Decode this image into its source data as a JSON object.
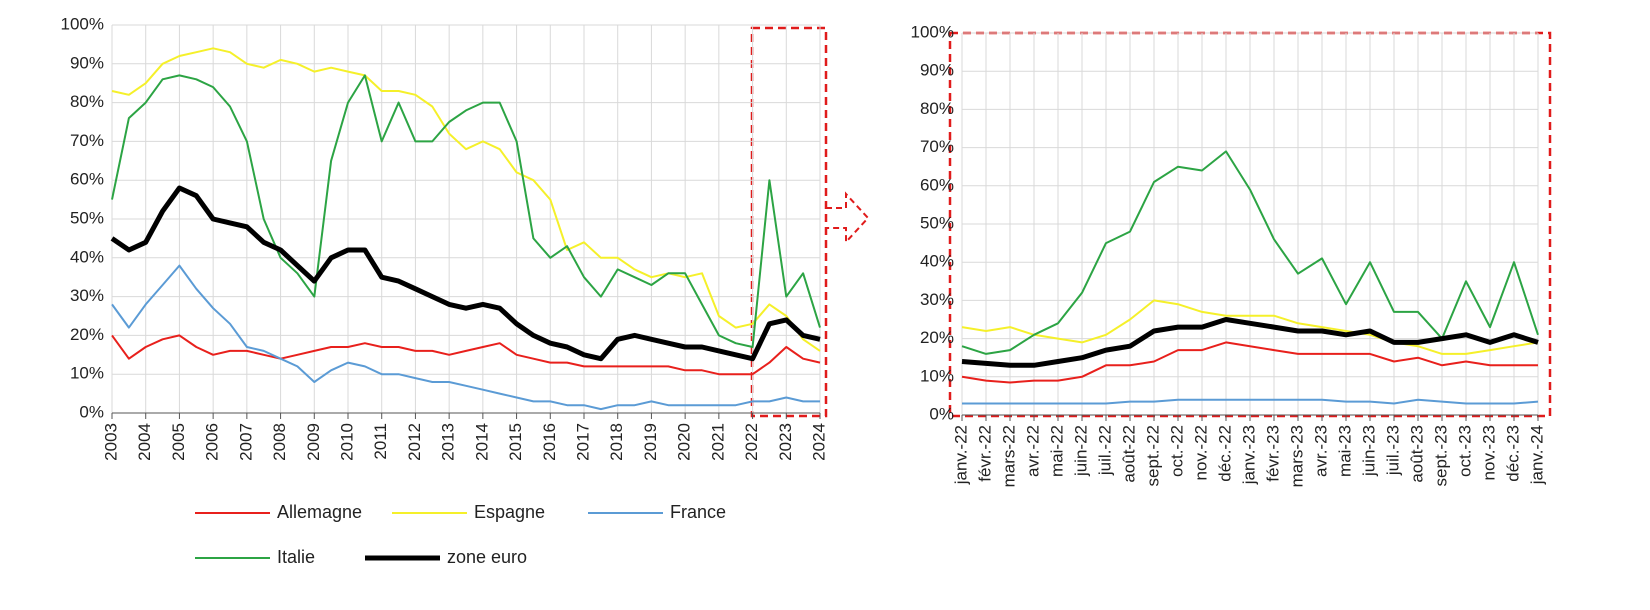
{
  "chart_data": [
    {
      "type": "line",
      "x": [
        2003,
        2003.5,
        2004,
        2004.5,
        2005,
        2005.5,
        2006,
        2006.5,
        2007,
        2007.5,
        2008,
        2008.5,
        2009,
        2009.5,
        2010,
        2010.5,
        2011,
        2011.5,
        2012,
        2012.5,
        2013,
        2013.5,
        2014,
        2014.5,
        2015,
        2015.5,
        2016,
        2016.5,
        2017,
        2017.5,
        2018,
        2018.5,
        2019,
        2019.5,
        2020,
        2020.5,
        2021,
        2021.5,
        2022,
        2022.5,
        2023,
        2023.5,
        2024
      ],
      "xlim": [
        2003,
        2024
      ],
      "xticks": [
        2003,
        2004,
        2005,
        2006,
        2007,
        2008,
        2009,
        2010,
        2011,
        2012,
        2013,
        2014,
        2015,
        2016,
        2017,
        2018,
        2019,
        2020,
        2021,
        2022,
        2023,
        2024
      ],
      "ylim": [
        0,
        100
      ],
      "yticks": [
        {
          "value": 0,
          "label": "0%"
        },
        {
          "value": 10,
          "label": "10%"
        },
        {
          "value": 20,
          "label": "20%"
        },
        {
          "value": 30,
          "label": "30%"
        },
        {
          "value": 40,
          "label": "40%"
        },
        {
          "value": 50,
          "label": "50%"
        },
        {
          "value": 60,
          "label": "60%"
        },
        {
          "value": 70,
          "label": "70%"
        },
        {
          "value": 80,
          "label": "80%"
        },
        {
          "value": 90,
          "label": "90%"
        },
        {
          "value": 100,
          "label": "100%"
        }
      ],
      "grid": true,
      "series": [
        {
          "name": "Allemagne",
          "color": "#e8201c",
          "linewidth": 2,
          "values": [
            20,
            14,
            17,
            19,
            20,
            17,
            15,
            16,
            16,
            15,
            14,
            15,
            16,
            17,
            17,
            18,
            17,
            17,
            16,
            16,
            15,
            16,
            17,
            18,
            15,
            14,
            13,
            13,
            12,
            12,
            12,
            12,
            12,
            12,
            11,
            11,
            10,
            10,
            10,
            13,
            17,
            14,
            13
          ]
        },
        {
          "name": "Espagne",
          "color": "#f5f02a",
          "linewidth": 2,
          "values": [
            83,
            82,
            85,
            90,
            92,
            93,
            94,
            93,
            90,
            89,
            91,
            90,
            88,
            89,
            88,
            87,
            83,
            83,
            82,
            79,
            72,
            68,
            70,
            68,
            62,
            60,
            55,
            42,
            44,
            40,
            40,
            37,
            35,
            36,
            35,
            36,
            25,
            22,
            23,
            28,
            25,
            19,
            16
          ]
        },
        {
          "name": "France",
          "color": "#5b9bd5",
          "linewidth": 2,
          "values": [
            28,
            22,
            28,
            33,
            38,
            32,
            27,
            23,
            17,
            16,
            14,
            12,
            8,
            11,
            13,
            12,
            10,
            10,
            9,
            8,
            8,
            7,
            6,
            5,
            4,
            3,
            3,
            2,
            2,
            1,
            2,
            2,
            3,
            2,
            2,
            2,
            2,
            2,
            3,
            3,
            4,
            3,
            3
          ]
        },
        {
          "name": "Italie",
          "color": "#2ca444",
          "linewidth": 2,
          "values": [
            55,
            76,
            80,
            86,
            87,
            86,
            84,
            79,
            70,
            50,
            40,
            36,
            30,
            65,
            80,
            87,
            70,
            80,
            70,
            70,
            75,
            78,
            80,
            80,
            70,
            45,
            40,
            43,
            35,
            30,
            37,
            35,
            33,
            36,
            36,
            28,
            20,
            18,
            17,
            60,
            30,
            36,
            22
          ]
        },
        {
          "name": "zone euro",
          "color": "#000000",
          "linewidth": 5,
          "values": [
            45,
            42,
            44,
            52,
            58,
            56,
            50,
            49,
            48,
            44,
            42,
            38,
            34,
            40,
            42,
            42,
            35,
            34,
            32,
            30,
            28,
            27,
            28,
            27,
            23,
            20,
            18,
            17,
            15,
            14,
            19,
            20,
            19,
            18,
            17,
            17,
            16,
            15,
            14,
            23,
            24,
            20,
            19
          ]
        }
      ]
    },
    {
      "type": "line",
      "categories": [
        "janv.-22",
        "févr.-22",
        "mars-22",
        "avr.-22",
        "mai-22",
        "juin-22",
        "juil.-22",
        "août-22",
        "sept.-22",
        "oct.-22",
        "nov.-22",
        "déc.-22",
        "janv.-23",
        "févr.-23",
        "mars-23",
        "avr.-23",
        "mai-23",
        "juin-23",
        "juil.-23",
        "août-23",
        "sept.-23",
        "oct.-23",
        "nov.-23",
        "déc.-23",
        "janv.-24"
      ],
      "ylim": [
        0,
        100
      ],
      "yticks": [
        {
          "value": 0,
          "label": "0%"
        },
        {
          "value": 10,
          "label": "10%"
        },
        {
          "value": 20,
          "label": "20%"
        },
        {
          "value": 30,
          "label": "30%"
        },
        {
          "value": 40,
          "label": "40%"
        },
        {
          "value": 50,
          "label": "50%"
        },
        {
          "value": 60,
          "label": "60%"
        },
        {
          "value": 70,
          "label": "70%"
        },
        {
          "value": 80,
          "label": "80%"
        },
        {
          "value": 90,
          "label": "90%"
        },
        {
          "value": 100,
          "label": "100%"
        }
      ],
      "grid": true,
      "series": [
        {
          "color": "#e8201c",
          "linewidth": 2,
          "values": [
            10,
            9,
            8.5,
            9,
            9,
            10,
            13,
            13,
            14,
            17,
            17,
            19,
            18,
            17,
            16,
            16,
            16,
            16,
            14,
            15,
            13,
            14,
            13,
            13,
            13
          ]
        },
        {
          "color": "#f5f02a",
          "linewidth": 2,
          "values": [
            23,
            22,
            23,
            21,
            20,
            19,
            21,
            25,
            30,
            29,
            27,
            26,
            26,
            26,
            24,
            23,
            22,
            21,
            19,
            18,
            16,
            16,
            17,
            18,
            19
          ]
        },
        {
          "color": "#5b9bd5",
          "linewidth": 2,
          "values": [
            3,
            3,
            3,
            3,
            3,
            3,
            3,
            3.5,
            3.5,
            4,
            4,
            4,
            4,
            4,
            4,
            4,
            3.5,
            3.5,
            3,
            4,
            3.5,
            3,
            3,
            3,
            3.5
          ]
        },
        {
          "color": "#2ca444",
          "linewidth": 2,
          "values": [
            18,
            16,
            17,
            21,
            24,
            32,
            45,
            48,
            61,
            65,
            64,
            69,
            59,
            46,
            37,
            41,
            29,
            40,
            27,
            27,
            20,
            35,
            23,
            40,
            21
          ]
        },
        {
          "color": "#000000",
          "linewidth": 5,
          "values": [
            14,
            13.5,
            13,
            13,
            14,
            15,
            17,
            18,
            22,
            23,
            23,
            25,
            24,
            23,
            22,
            22,
            21,
            22,
            19,
            19,
            20,
            21,
            19,
            21,
            19
          ]
        }
      ]
    }
  ]
}
